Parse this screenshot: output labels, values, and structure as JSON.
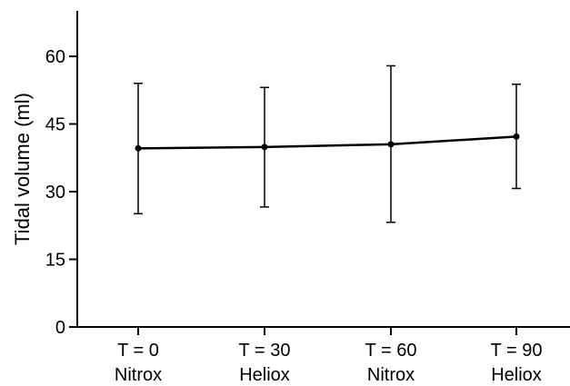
{
  "chart_data": {
    "type": "line",
    "title": "",
    "xlabel": "",
    "ylabel": "Tidal volume (ml)",
    "ylim": [
      0,
      70
    ],
    "yticks": [
      "0",
      "15",
      "30",
      "45",
      "60"
    ],
    "categories": [
      {
        "line1": "T = 0",
        "line2": "Nitrox"
      },
      {
        "line1": "T = 30",
        "line2": "Heliox"
      },
      {
        "line1": "T = 60",
        "line2": "Nitrox"
      },
      {
        "line1": "T = 90",
        "line2": "Heliox"
      }
    ],
    "series": [
      {
        "values": [
          39.6,
          39.9,
          40.5,
          42.2
        ],
        "error_upper": [
          54.0,
          53.1,
          57.9,
          53.8
        ],
        "error_lower": [
          25.1,
          26.6,
          23.2,
          30.7
        ]
      }
    ],
    "grid": false,
    "legend": "none",
    "color": "#000000"
  }
}
